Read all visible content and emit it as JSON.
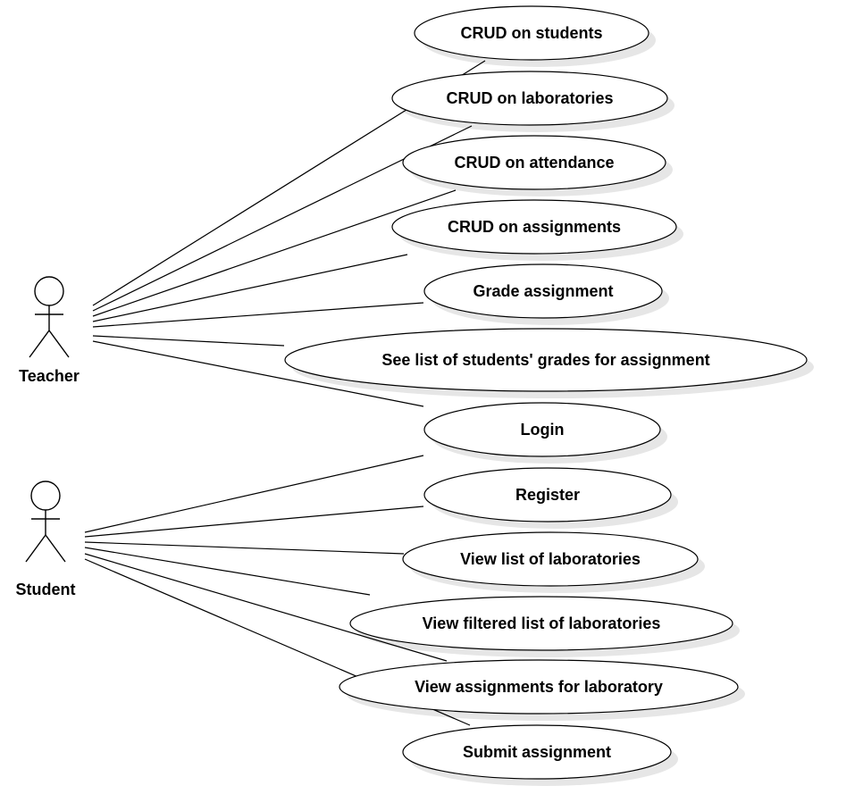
{
  "diagram": {
    "actors": [
      {
        "id": "teacher",
        "label": "Teacher"
      },
      {
        "id": "student",
        "label": "Student"
      }
    ],
    "use_cases": [
      {
        "id": "crud-students",
        "label": "CRUD on students",
        "actor": "teacher"
      },
      {
        "id": "crud-laboratories",
        "label": "CRUD on laboratories",
        "actor": "teacher"
      },
      {
        "id": "crud-attendance",
        "label": "CRUD on attendance",
        "actor": "teacher"
      },
      {
        "id": "crud-assignments",
        "label": "CRUD on assignments",
        "actor": "teacher"
      },
      {
        "id": "grade-assignment",
        "label": "Grade assignment",
        "actor": "teacher"
      },
      {
        "id": "see-grades",
        "label": "See list of students' grades for assignment",
        "actor": "teacher"
      },
      {
        "id": "login",
        "label": "Login",
        "actor": "teacher"
      },
      {
        "id": "register",
        "label": "Register",
        "actor": "student"
      },
      {
        "id": "view-labs",
        "label": "View list of laboratories",
        "actor": "student"
      },
      {
        "id": "view-filtered-labs",
        "label": "View filtered list of laboratories",
        "actor": "student"
      },
      {
        "id": "view-assignments",
        "label": "View assignments for laboratory",
        "actor": "student"
      },
      {
        "id": "submit-assignment",
        "label": "Submit assignment",
        "actor": "student"
      }
    ]
  },
  "colors": {
    "line": "#000000",
    "shadow": "#e6e6e6",
    "fill": "#ffffff"
  }
}
